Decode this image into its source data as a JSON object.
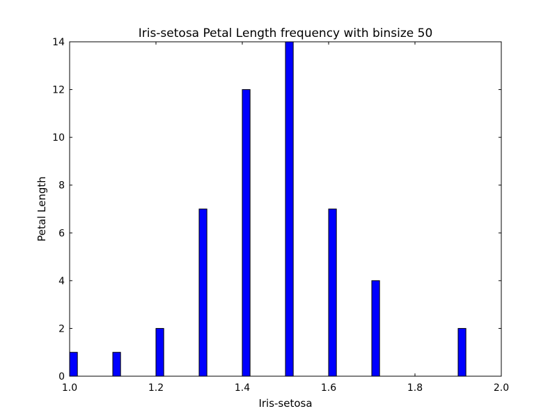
{
  "chart_data": {
    "type": "bar",
    "title": "Iris-setosa Petal Length frequency with binsize 50",
    "xlabel": "Iris-setosa",
    "ylabel": "Petal Length",
    "xlim": [
      1.0,
      2.0
    ],
    "ylim": [
      0,
      14
    ],
    "xticks": [
      "1.0",
      "1.2",
      "1.4",
      "1.6",
      "1.8",
      "2.0"
    ],
    "yticks": [
      "0",
      "2",
      "4",
      "6",
      "8",
      "10",
      "12",
      "14"
    ],
    "bin_width": 0.018,
    "bar_color": "#0000ff",
    "edge_color": "#000000",
    "grid": false,
    "bars": [
      {
        "x": 1.0,
        "value": 1
      },
      {
        "x": 1.1,
        "value": 1
      },
      {
        "x": 1.2,
        "value": 2
      },
      {
        "x": 1.3,
        "value": 7
      },
      {
        "x": 1.4,
        "value": 12
      },
      {
        "x": 1.5,
        "value": 14
      },
      {
        "x": 1.6,
        "value": 7
      },
      {
        "x": 1.7,
        "value": 4
      },
      {
        "x": 1.9,
        "value": 2
      }
    ]
  }
}
